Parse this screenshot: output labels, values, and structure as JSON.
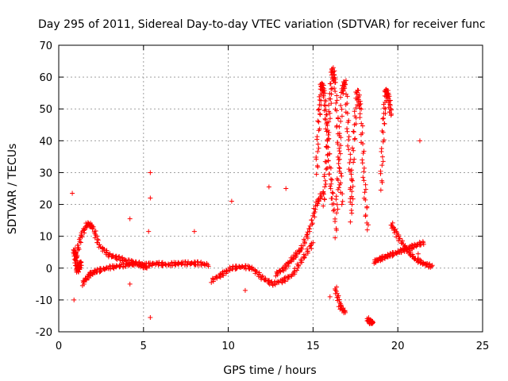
{
  "chart_data": {
    "type": "scatter",
    "title": "Day 295 of 2011, Sidereal Day-to-day VTEC variation (SDTVAR) for receiver func",
    "xlabel": "GPS time / hours",
    "ylabel": "SDTVAR / TECUs",
    "xlim": [
      0,
      25
    ],
    "ylim": [
      -20,
      70
    ],
    "xticks": [
      0,
      5,
      10,
      15,
      20,
      25
    ],
    "yticks": [
      -20,
      -10,
      0,
      10,
      20,
      30,
      40,
      50,
      60,
      70
    ],
    "grid": true,
    "marker": "+",
    "series": [
      {
        "name": "SDTVAR",
        "color": "#ff0000",
        "tracks": [
          {
            "x": [
              1.4,
              1.8,
              2.2,
              2.8,
              3.4,
              4.0,
              4.6,
              5.2,
              5.8,
              6.4,
              7.0,
              7.6,
              8.2,
              8.8
            ],
            "y": [
              -5,
              -2,
              -1,
              0,
              0.5,
              1,
              1.5,
              1.0,
              1.5,
              1.0,
              1.5,
              1.5,
              1.5,
              1.0
            ]
          },
          {
            "x": [
              1.0,
              1.3,
              1.7,
              2.0,
              2.4,
              3.0,
              3.6,
              4.2,
              4.8,
              5.2
            ],
            "y": [
              3,
              10,
              14,
              13,
              7,
              4,
              3,
              2,
              1,
              0
            ]
          },
          {
            "x": [
              0.9,
              1.0,
              1.1,
              1.2,
              1.3
            ],
            "y": [
              6,
              3,
              -1,
              0,
              2
            ]
          },
          {
            "x": [
              9.0,
              9.6,
              10.2,
              10.8,
              11.4,
              12.0,
              12.6,
              13.2,
              13.8,
              14.4,
              15.0
            ],
            "y": [
              -4,
              -2,
              0,
              0.5,
              0,
              -3,
              -5,
              -4,
              -2,
              3,
              8
            ]
          },
          {
            "x": [
              12.8,
              13.3,
              13.8,
              14.3,
              14.8,
              15.2,
              15.6
            ],
            "y": [
              -2,
              0,
              3,
              6,
              12,
              20,
              24
            ]
          },
          {
            "x": [
              15.2,
              15.35,
              15.5,
              15.65,
              15.8,
              16.0,
              16.2
            ],
            "y": [
              30,
              48,
              58,
              55,
              45,
              30,
              18
            ]
          },
          {
            "x": [
              15.6,
              15.8,
              16.0,
              16.15,
              16.3,
              16.5,
              16.7
            ],
            "y": [
              20,
              35,
              52,
              63,
              58,
              40,
              20
            ]
          },
          {
            "x": [
              16.3,
              16.5,
              16.7,
              16.9,
              17.1,
              17.3
            ],
            "y": [
              10,
              30,
              55,
              59,
              40,
              20
            ]
          },
          {
            "x": [
              17.2,
              17.4,
              17.6,
              17.8,
              18.0,
              18.2
            ],
            "y": [
              15,
              40,
              56,
              50,
              30,
              12
            ]
          },
          {
            "x": [
              19.0,
              19.15,
              19.3,
              19.45,
              19.6
            ],
            "y": [
              25,
              45,
              56,
              54,
              48
            ]
          },
          {
            "x": [
              18.6,
              19.0,
              19.5,
              20.0,
              20.5,
              21.0,
              21.5
            ],
            "y": [
              2,
              3,
              4,
              5,
              6,
              7,
              8
            ]
          },
          {
            "x": [
              19.6,
              20.0,
              20.5,
              21.0,
              21.5,
              22.0
            ],
            "y": [
              14,
              10,
              6,
              3,
              1.5,
              0.5
            ]
          },
          {
            "x": [
              16.3,
              16.6,
              16.9
            ],
            "y": [
              -6,
              -12,
              -14
            ]
          },
          {
            "x": [
              18.2,
              18.4,
              18.5
            ],
            "y": [
              -16,
              -17,
              -17
            ]
          }
        ],
        "outliers": [
          {
            "x": 0.8,
            "y": 23.5
          },
          {
            "x": 0.9,
            "y": -10
          },
          {
            "x": 5.4,
            "y": 30
          },
          {
            "x": 5.4,
            "y": 22
          },
          {
            "x": 5.3,
            "y": 11.5
          },
          {
            "x": 5.4,
            "y": -15.5
          },
          {
            "x": 4.2,
            "y": 15.5
          },
          {
            "x": 4.2,
            "y": -5
          },
          {
            "x": 8.0,
            "y": 11.5
          },
          {
            "x": 10.2,
            "y": 21
          },
          {
            "x": 11.0,
            "y": -7
          },
          {
            "x": 12.4,
            "y": 25.5
          },
          {
            "x": 13.4,
            "y": 25
          },
          {
            "x": 16.0,
            "y": -9
          },
          {
            "x": 21.3,
            "y": 40
          },
          {
            "x": 21.2,
            "y": 4.5
          }
        ]
      }
    ]
  }
}
